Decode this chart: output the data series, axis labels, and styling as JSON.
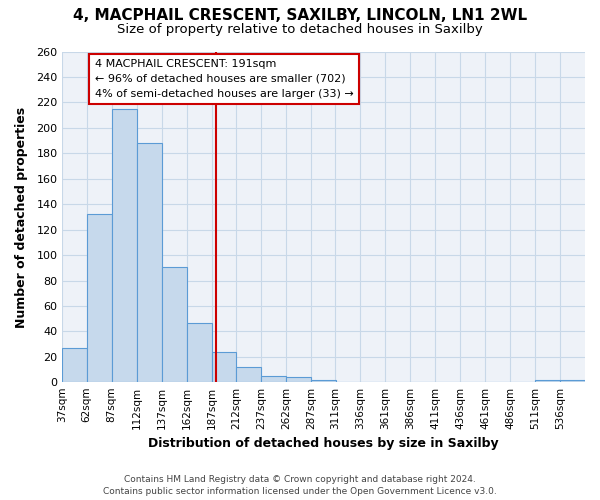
{
  "title_line1": "4, MACPHAIL CRESCENT, SAXILBY, LINCOLN, LN1 2WL",
  "title_line2": "Size of property relative to detached houses in Saxilby",
  "xlabel": "Distribution of detached houses by size in Saxilby",
  "ylabel": "Number of detached properties",
  "bin_edges": [
    37,
    62,
    87,
    112,
    137,
    162,
    187,
    212,
    237,
    262,
    287,
    311,
    336,
    361,
    386,
    411,
    436,
    461,
    486,
    511,
    536,
    561
  ],
  "bin_labels": [
    "37sqm",
    "62sqm",
    "87sqm",
    "112sqm",
    "137sqm",
    "162sqm",
    "187sqm",
    "212sqm",
    "237sqm",
    "262sqm",
    "287sqm",
    "311sqm",
    "336sqm",
    "361sqm",
    "386sqm",
    "411sqm",
    "436sqm",
    "461sqm",
    "486sqm",
    "511sqm",
    "536sqm"
  ],
  "counts": [
    27,
    132,
    215,
    188,
    91,
    47,
    24,
    12,
    5,
    4,
    2,
    0,
    0,
    0,
    0,
    0,
    0,
    0,
    0,
    2,
    2
  ],
  "bar_facecolor": "#c6d9ec",
  "bar_edgecolor": "#5b9bd5",
  "grid_color": "#c8d8e8",
  "background_color": "#ffffff",
  "ax_background_color": "#eef2f8",
  "property_size": 191,
  "vline_color": "#cc0000",
  "annotation_line1": "4 MACPHAIL CRESCENT: 191sqm",
  "annotation_line2": "← 96% of detached houses are smaller (702)",
  "annotation_line3": "4% of semi-detached houses are larger (33) →",
  "annotation_box_color": "#ffffff",
  "annotation_box_edgecolor": "#cc0000",
  "ylim_max": 260,
  "yticks": [
    0,
    20,
    40,
    60,
    80,
    100,
    120,
    140,
    160,
    180,
    200,
    220,
    240,
    260
  ],
  "footnote_line1": "Contains HM Land Registry data © Crown copyright and database right 2024.",
  "footnote_line2": "Contains public sector information licensed under the Open Government Licence v3.0."
}
